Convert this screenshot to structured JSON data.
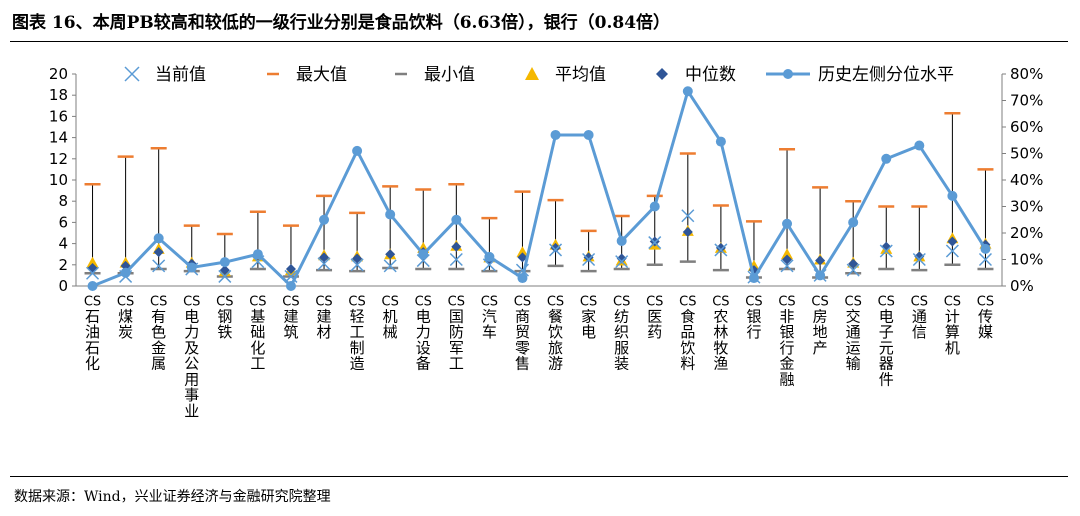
{
  "title": "图表 16、本周PB较高和较低的一级行业分别是食品饮料（6.63倍），银行（0.84倍）",
  "source": "数据来源：Wind，兴业证券经济与金融研究院整理",
  "chart_data": {
    "type": "line",
    "categories": [
      "CS石油石化",
      "CS煤炭",
      "CS有色金属",
      "CS电力及公用事业",
      "CS钢铁",
      "CS基础化工",
      "CS建筑",
      "CS建材",
      "CS轻工制造",
      "CS机械",
      "CS电力设备",
      "CS国防军工",
      "CS汽车",
      "CS商贸零售",
      "CS餐饮旅游",
      "CS家电",
      "CS纺织服装",
      "CS医药",
      "CS食品饮料",
      "CS农林牧渔",
      "CS银行",
      "CS非银行金融",
      "CS房地产",
      "CS交通运输",
      "CS电子元器件",
      "CS通信",
      "CS计算机",
      "CS传媒"
    ],
    "ylim_left": [
      0,
      20
    ],
    "yticks_left": [
      0,
      2,
      4,
      6,
      8,
      10,
      12,
      14,
      16,
      18,
      20
    ],
    "ylim_right": [
      0,
      80
    ],
    "yticks_right": [
      "0%",
      "10%",
      "20%",
      "30%",
      "40%",
      "50%",
      "60%",
      "70%",
      "80%"
    ],
    "legend_position": "top",
    "grid": false,
    "series": [
      {
        "name": "当前值",
        "marker": "x",
        "color": "#5b9bd5",
        "values": [
          1.2,
          0.9,
          1.9,
          1.6,
          0.9,
          2.3,
          0.9,
          2.1,
          2.0,
          1.9,
          2.4,
          2.5,
          2.0,
          1.5,
          3.4,
          2.5,
          2.3,
          4.1,
          6.63,
          3.4,
          0.84,
          1.9,
          1.0,
          1.5,
          3.3,
          2.5,
          3.3,
          2.5
        ]
      },
      {
        "name": "最大值",
        "marker": "dash",
        "color": "#ed7d31",
        "values": [
          9.6,
          12.2,
          13.0,
          5.7,
          4.9,
          7.0,
          5.7,
          8.5,
          6.9,
          9.4,
          9.1,
          9.6,
          6.4,
          8.9,
          8.1,
          5.2,
          6.6,
          8.5,
          12.5,
          7.6,
          6.1,
          12.9,
          9.3,
          8.0,
          7.5,
          7.5,
          16.3,
          11.0
        ]
      },
      {
        "name": "最小值",
        "marker": "dash",
        "color": "#7f7f7f",
        "values": [
          1.2,
          1.2,
          1.6,
          1.4,
          0.9,
          1.6,
          0.9,
          1.5,
          1.4,
          1.7,
          1.6,
          1.6,
          1.4,
          1.4,
          1.9,
          1.4,
          1.6,
          2.0,
          2.3,
          1.5,
          0.8,
          1.6,
          0.8,
          1.2,
          1.6,
          1.5,
          2.0,
          1.6
        ]
      },
      {
        "name": "平均值",
        "marker": "triangle",
        "color": "#f5b800",
        "values": [
          2.2,
          2.2,
          3.5,
          2.2,
          1.4,
          2.8,
          1.5,
          2.9,
          2.8,
          3.0,
          3.6,
          3.8,
          2.7,
          3.2,
          3.9,
          2.8,
          2.4,
          3.9,
          5.2,
          3.6,
          1.9,
          3.0,
          2.5,
          2.2,
          3.5,
          2.8,
          4.5,
          4.0
        ]
      },
      {
        "name": "中位数",
        "marker": "diamond",
        "color": "#2f5597",
        "values": [
          1.7,
          1.9,
          3.2,
          2.1,
          1.5,
          2.9,
          1.6,
          2.7,
          2.6,
          3.0,
          3.2,
          3.7,
          2.4,
          2.7,
          3.6,
          2.7,
          2.6,
          4.2,
          5.1,
          3.6,
          1.5,
          2.5,
          2.4,
          2.1,
          3.7,
          2.8,
          4.2,
          3.9
        ]
      },
      {
        "name": "历史左侧分位水平",
        "marker": "circle-line",
        "color": "#5b9bd5",
        "axis": "right",
        "values": [
          0,
          5,
          18,
          7,
          9,
          12,
          0,
          25,
          51,
          27,
          12,
          25,
          11,
          3,
          57,
          57,
          17,
          30,
          73.5,
          54.5,
          3,
          23.5,
          4,
          24,
          48,
          53,
          34,
          14
        ]
      }
    ]
  }
}
